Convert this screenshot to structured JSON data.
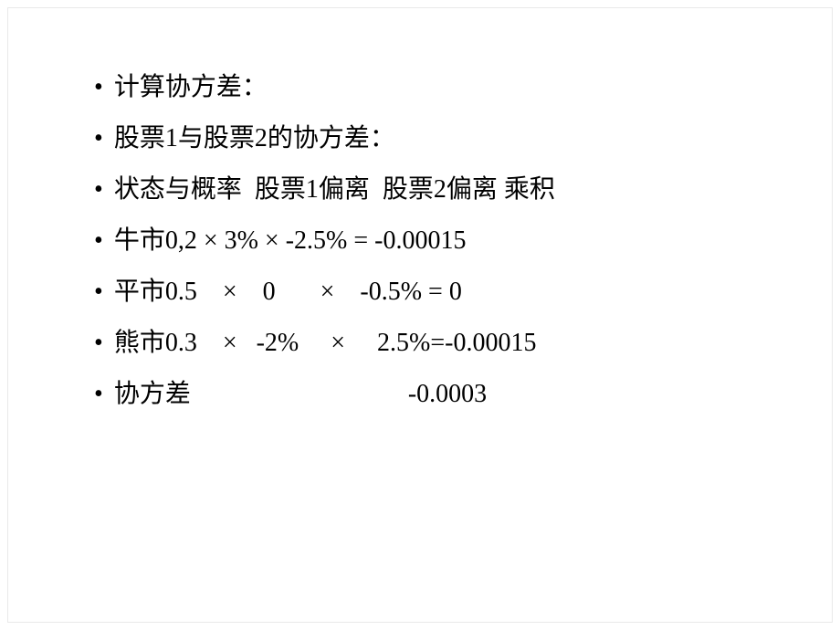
{
  "slide": {
    "background_color": "#ffffff",
    "text_color": "#000000",
    "font_size": 28,
    "font_family": "SimSun",
    "bullet_char": "•",
    "lines": [
      "计算协方差：",
      "股票1与股票2的协方差：",
      "状态与概率  股票1偏离  股票2偏离 乘积",
      "牛市0,2    ×    3%     ×    -2.5% = -0.00015",
      "平市0.5    ×    0       ×    -0.5% = 0",
      "熊市0.3    ×   -2%     ×     2.5%=-0.00015",
      "协方差                                  -0.0003"
    ]
  }
}
